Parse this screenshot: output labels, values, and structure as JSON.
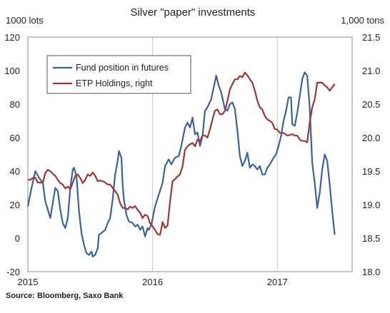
{
  "chart_data": {
    "type": "line",
    "title": "Silver \"paper\" investments",
    "left_axis_label": "1000 lots",
    "right_axis_label": "1,000 tons",
    "source": "Source: Bloomberg, Saxo Bank",
    "x_range": [
      2015.0,
      2017.6
    ],
    "x_ticks": [
      {
        "value": 2015.0,
        "label": "2015"
      },
      {
        "value": 2016.0,
        "label": "2016"
      },
      {
        "value": 2017.0,
        "label": "2017"
      }
    ],
    "y_left": {
      "min": -20,
      "max": 120,
      "ticks": [
        "-20",
        "0",
        "20",
        "40",
        "60",
        "80",
        "100",
        "120"
      ]
    },
    "y_right": {
      "min": 18.0,
      "max": 21.5,
      "ticks": [
        "18.0",
        "18.5",
        "19.0",
        "19.5",
        "20.0",
        "20.5",
        "21.0",
        "21.5"
      ]
    },
    "grid": "vertical at year boundaries",
    "legend_position": "top-left",
    "series": [
      {
        "name": "Fund position in futures",
        "axis": "left",
        "color": "#3b639a",
        "points": [
          [
            2015.0,
            19
          ],
          [
            2015.03,
            30
          ],
          [
            2015.06,
            40
          ],
          [
            2015.09,
            36
          ],
          [
            2015.12,
            33
          ],
          [
            2015.14,
            22
          ],
          [
            2015.16,
            17
          ],
          [
            2015.18,
            12
          ],
          [
            2015.2,
            21
          ],
          [
            2015.22,
            30
          ],
          [
            2015.24,
            28
          ],
          [
            2015.26,
            17
          ],
          [
            2015.28,
            9
          ],
          [
            2015.3,
            6
          ],
          [
            2015.32,
            12
          ],
          [
            2015.34,
            30
          ],
          [
            2015.36,
            41
          ],
          [
            2015.37,
            42
          ],
          [
            2015.39,
            37
          ],
          [
            2015.41,
            16
          ],
          [
            2015.43,
            3
          ],
          [
            2015.45,
            -4
          ],
          [
            2015.47,
            -9
          ],
          [
            2015.49,
            -10
          ],
          [
            2015.51,
            -8
          ],
          [
            2015.52,
            -11
          ],
          [
            2015.54,
            -10
          ],
          [
            2015.56,
            -6
          ],
          [
            2015.57,
            2
          ],
          [
            2015.59,
            3
          ],
          [
            2015.62,
            5
          ],
          [
            2015.64,
            9
          ],
          [
            2015.66,
            12
          ],
          [
            2015.68,
            23
          ],
          [
            2015.7,
            38
          ],
          [
            2015.72,
            46
          ],
          [
            2015.73,
            52
          ],
          [
            2015.75,
            48
          ],
          [
            2015.76,
            32
          ],
          [
            2015.77,
            23
          ],
          [
            2015.79,
            14
          ],
          [
            2015.81,
            10
          ],
          [
            2015.84,
            9
          ],
          [
            2015.86,
            7
          ],
          [
            2015.88,
            8
          ],
          [
            2015.9,
            5
          ],
          [
            2015.92,
            7
          ],
          [
            2015.94,
            1
          ],
          [
            2015.96,
            6
          ],
          [
            2015.97,
            5
          ],
          [
            2015.99,
            8
          ],
          [
            2016.02,
            19
          ],
          [
            2016.05,
            26
          ],
          [
            2016.08,
            33
          ],
          [
            2016.1,
            43
          ],
          [
            2016.13,
            47
          ],
          [
            2016.15,
            44
          ],
          [
            2016.18,
            48
          ],
          [
            2016.21,
            49
          ],
          [
            2016.23,
            55
          ],
          [
            2016.26,
            66
          ],
          [
            2016.28,
            69
          ],
          [
            2016.3,
            66
          ],
          [
            2016.32,
            72
          ],
          [
            2016.34,
            62
          ],
          [
            2016.36,
            63
          ],
          [
            2016.38,
            55
          ],
          [
            2016.4,
            61
          ],
          [
            2016.42,
            76
          ],
          [
            2016.44,
            78
          ],
          [
            2016.47,
            83
          ],
          [
            2016.49,
            90
          ],
          [
            2016.51,
            97
          ],
          [
            2016.53,
            91
          ],
          [
            2016.55,
            87
          ],
          [
            2016.58,
            77
          ],
          [
            2016.6,
            76
          ],
          [
            2016.62,
            80
          ],
          [
            2016.64,
            81
          ],
          [
            2016.66,
            77
          ],
          [
            2016.68,
            64
          ],
          [
            2016.7,
            49
          ],
          [
            2016.72,
            43
          ],
          [
            2016.74,
            46
          ],
          [
            2016.76,
            51
          ],
          [
            2016.78,
            42
          ],
          [
            2016.8,
            44
          ],
          [
            2016.82,
            43
          ],
          [
            2016.84,
            41
          ],
          [
            2016.86,
            43
          ],
          [
            2016.88,
            38
          ],
          [
            2016.9,
            38
          ],
          [
            2016.92,
            42
          ],
          [
            2016.94,
            44
          ],
          [
            2016.97,
            48
          ],
          [
            2016.99,
            50
          ],
          [
            2017.01,
            55
          ],
          [
            2017.03,
            61
          ],
          [
            2017.05,
            70
          ],
          [
            2017.07,
            76
          ],
          [
            2017.09,
            84
          ],
          [
            2017.11,
            84
          ],
          [
            2017.12,
            68
          ],
          [
            2017.14,
            67
          ],
          [
            2017.16,
            75
          ],
          [
            2017.18,
            85
          ],
          [
            2017.2,
            95
          ],
          [
            2017.22,
            99
          ],
          [
            2017.24,
            97
          ],
          [
            2017.26,
            78
          ],
          [
            2017.28,
            45
          ],
          [
            2017.3,
            33
          ],
          [
            2017.32,
            18
          ],
          [
            2017.34,
            27
          ],
          [
            2017.36,
            41
          ],
          [
            2017.38,
            50
          ],
          [
            2017.4,
            46
          ],
          [
            2017.42,
            32
          ],
          [
            2017.44,
            16
          ],
          [
            2017.46,
            2
          ]
        ]
      },
      {
        "name": "ETP Holdings, right",
        "axis": "right",
        "color": "#9b3836",
        "points": [
          [
            2015.0,
            19.37
          ],
          [
            2015.02,
            19.37
          ],
          [
            2015.04,
            19.4
          ],
          [
            2015.06,
            19.4
          ],
          [
            2015.08,
            19.33
          ],
          [
            2015.1,
            19.33
          ],
          [
            2015.12,
            19.33
          ],
          [
            2015.14,
            19.47
          ],
          [
            2015.16,
            19.52
          ],
          [
            2015.18,
            19.5
          ],
          [
            2015.2,
            19.46
          ],
          [
            2015.22,
            19.43
          ],
          [
            2015.24,
            19.37
          ],
          [
            2015.26,
            19.32
          ],
          [
            2015.28,
            19.3
          ],
          [
            2015.3,
            19.24
          ],
          [
            2015.32,
            19.27
          ],
          [
            2015.34,
            19.23
          ],
          [
            2015.36,
            19.33
          ],
          [
            2015.38,
            19.43
          ],
          [
            2015.4,
            19.45
          ],
          [
            2015.42,
            19.4
          ],
          [
            2015.44,
            19.32
          ],
          [
            2015.46,
            19.37
          ],
          [
            2015.48,
            19.45
          ],
          [
            2015.5,
            19.43
          ],
          [
            2015.52,
            19.48
          ],
          [
            2015.54,
            19.43
          ],
          [
            2015.56,
            19.35
          ],
          [
            2015.58,
            19.36
          ],
          [
            2015.6,
            19.35
          ],
          [
            2015.62,
            19.33
          ],
          [
            2015.64,
            19.3
          ],
          [
            2015.66,
            19.3
          ],
          [
            2015.68,
            19.25
          ],
          [
            2015.7,
            19.2
          ],
          [
            2015.72,
            19.15
          ],
          [
            2015.74,
            19.02
          ],
          [
            2015.76,
            18.95
          ],
          [
            2015.78,
            18.95
          ],
          [
            2015.8,
            18.93
          ],
          [
            2015.82,
            18.97
          ],
          [
            2015.84,
            18.95
          ],
          [
            2015.86,
            18.98
          ],
          [
            2015.88,
            18.92
          ],
          [
            2015.9,
            18.88
          ],
          [
            2015.92,
            18.8
          ],
          [
            2015.94,
            18.85
          ],
          [
            2015.96,
            18.83
          ],
          [
            2015.98,
            18.72
          ],
          [
            2016.0,
            18.68
          ],
          [
            2016.02,
            18.62
          ],
          [
            2016.04,
            18.56
          ],
          [
            2016.06,
            18.55
          ],
          [
            2016.08,
            18.74
          ],
          [
            2016.1,
            18.65
          ],
          [
            2016.12,
            18.69
          ],
          [
            2016.14,
            19.05
          ],
          [
            2016.16,
            19.35
          ],
          [
            2016.18,
            19.38
          ],
          [
            2016.2,
            19.42
          ],
          [
            2016.22,
            19.45
          ],
          [
            2016.24,
            19.57
          ],
          [
            2016.26,
            19.82
          ],
          [
            2016.28,
            19.87
          ],
          [
            2016.3,
            19.9
          ],
          [
            2016.32,
            19.92
          ],
          [
            2016.34,
            19.87
          ],
          [
            2016.36,
            19.97
          ],
          [
            2016.38,
            19.95
          ],
          [
            2016.4,
            20.03
          ],
          [
            2016.42,
            20.03
          ],
          [
            2016.44,
            20.0
          ],
          [
            2016.46,
            20.12
          ],
          [
            2016.48,
            20.27
          ],
          [
            2016.5,
            20.4
          ],
          [
            2016.52,
            20.42
          ],
          [
            2016.54,
            20.35
          ],
          [
            2016.56,
            20.35
          ],
          [
            2016.58,
            20.4
          ],
          [
            2016.6,
            20.55
          ],
          [
            2016.62,
            20.72
          ],
          [
            2016.64,
            20.8
          ],
          [
            2016.66,
            20.87
          ],
          [
            2016.68,
            20.87
          ],
          [
            2016.7,
            20.92
          ],
          [
            2016.72,
            20.9
          ],
          [
            2016.74,
            20.97
          ],
          [
            2016.76,
            20.93
          ],
          [
            2016.78,
            20.87
          ],
          [
            2016.8,
            20.82
          ],
          [
            2016.82,
            20.7
          ],
          [
            2016.84,
            20.55
          ],
          [
            2016.86,
            20.45
          ],
          [
            2016.88,
            20.42
          ],
          [
            2016.9,
            20.32
          ],
          [
            2016.92,
            20.27
          ],
          [
            2016.94,
            20.25
          ],
          [
            2016.96,
            20.22
          ],
          [
            2016.98,
            20.13
          ],
          [
            2017.0,
            20.12
          ],
          [
            2017.02,
            20.07
          ],
          [
            2017.04,
            20.07
          ],
          [
            2017.06,
            20.06
          ],
          [
            2017.08,
            20.03
          ],
          [
            2017.1,
            20.04
          ],
          [
            2017.12,
            20.05
          ],
          [
            2017.14,
            20.03
          ],
          [
            2017.16,
            20.03
          ],
          [
            2017.18,
            19.97
          ],
          [
            2017.2,
            19.95
          ],
          [
            2017.22,
            19.95
          ],
          [
            2017.24,
            19.93
          ],
          [
            2017.26,
            20.23
          ],
          [
            2017.28,
            20.45
          ],
          [
            2017.3,
            20.57
          ],
          [
            2017.32,
            20.82
          ],
          [
            2017.34,
            20.82
          ],
          [
            2017.36,
            20.82
          ],
          [
            2017.38,
            20.78
          ],
          [
            2017.4,
            20.75
          ],
          [
            2017.42,
            20.7
          ],
          [
            2017.44,
            20.75
          ],
          [
            2017.46,
            20.8
          ]
        ]
      }
    ]
  }
}
